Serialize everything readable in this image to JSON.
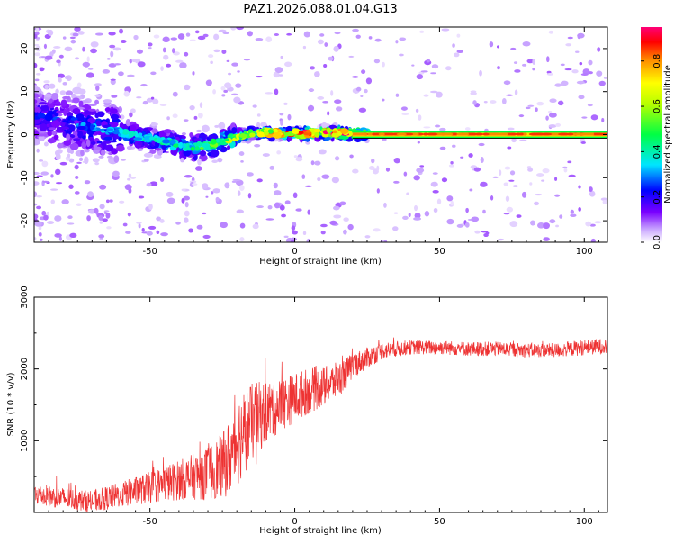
{
  "title": "PAZ1.2026.088.01.04.G13",
  "chart_data": [
    {
      "type": "heatmap",
      "title": "",
      "xlabel": "Height of straight line (km)",
      "ylabel": "Frequency (Hz)",
      "xlim": [
        -90,
        108
      ],
      "ylim": [
        -25,
        25
      ],
      "xticks": [
        -50,
        0,
        50,
        100
      ],
      "yticks": [
        -20,
        -10,
        0,
        10,
        20
      ],
      "ridge": {
        "x": [
          -90,
          -80,
          -70,
          -60,
          -50,
          -45,
          -40,
          -35,
          -30,
          -25,
          -20,
          -15,
          -10,
          -5,
          0,
          5,
          10,
          15,
          20,
          30,
          40,
          50,
          60,
          70,
          80,
          90,
          100,
          108
        ],
        "frequency": [
          4.5,
          3.0,
          1.5,
          0.5,
          -1.0,
          -1.5,
          -2.5,
          -3.0,
          -2.5,
          -1.5,
          -0.5,
          0.3,
          0.5,
          0.3,
          0.2,
          0.3,
          0.5,
          0.4,
          0.2,
          0.1,
          0.1,
          0.1,
          0.1,
          0.1,
          0.1,
          0.1,
          0.1,
          0.1
        ],
        "amplitude": [
          0.25,
          0.28,
          0.3,
          0.35,
          0.38,
          0.4,
          0.42,
          0.45,
          0.5,
          0.55,
          0.6,
          0.65,
          0.7,
          0.75,
          0.8,
          0.85,
          0.88,
          0.9,
          0.92,
          0.92,
          0.92,
          0.92,
          0.92,
          0.92,
          0.92,
          0.92,
          0.92,
          0.92
        ]
      },
      "colorbar": {
        "label": "Normalized spectral amplitude",
        "range": [
          0.0,
          0.95
        ],
        "ticks": [
          "0.0",
          "0.2",
          "0.4",
          "0.6",
          "0.8"
        ]
      }
    },
    {
      "type": "line",
      "title": "",
      "xlabel": "Height of straight line (km)",
      "ylabel": "SNR (10 * v/v)",
      "xlim": [
        -90,
        108
      ],
      "ylim": [
        0,
        3000
      ],
      "xticks": [
        -50,
        0,
        50,
        100
      ],
      "yticks": [
        1000,
        2000,
        3000
      ],
      "series": [
        {
          "name": "SNR",
          "color": "#ee3333",
          "x": [
            -90,
            -80,
            -70,
            -60,
            -50,
            -40,
            -35,
            -30,
            -25,
            -22,
            -20,
            -18,
            -15,
            -10,
            -5,
            0,
            5,
            10,
            15,
            18,
            20,
            25,
            30,
            35,
            40,
            50,
            60,
            70,
            80,
            90,
            100,
            108
          ],
          "y": [
            250,
            200,
            150,
            250,
            350,
            450,
            500,
            550,
            650,
            800,
            1000,
            1100,
            1250,
            1400,
            1500,
            1600,
            1700,
            1750,
            1850,
            1950,
            2050,
            2150,
            2250,
            2280,
            2300,
            2300,
            2280,
            2280,
            2260,
            2260,
            2300,
            2320
          ],
          "spread": [
            150,
            150,
            150,
            180,
            220,
            280,
            320,
            380,
            450,
            550,
            650,
            600,
            550,
            450,
            380,
            350,
            320,
            280,
            250,
            220,
            180,
            150,
            120,
            110,
            100,
            100,
            100,
            100,
            100,
            100,
            110,
            110
          ]
        }
      ]
    }
  ]
}
